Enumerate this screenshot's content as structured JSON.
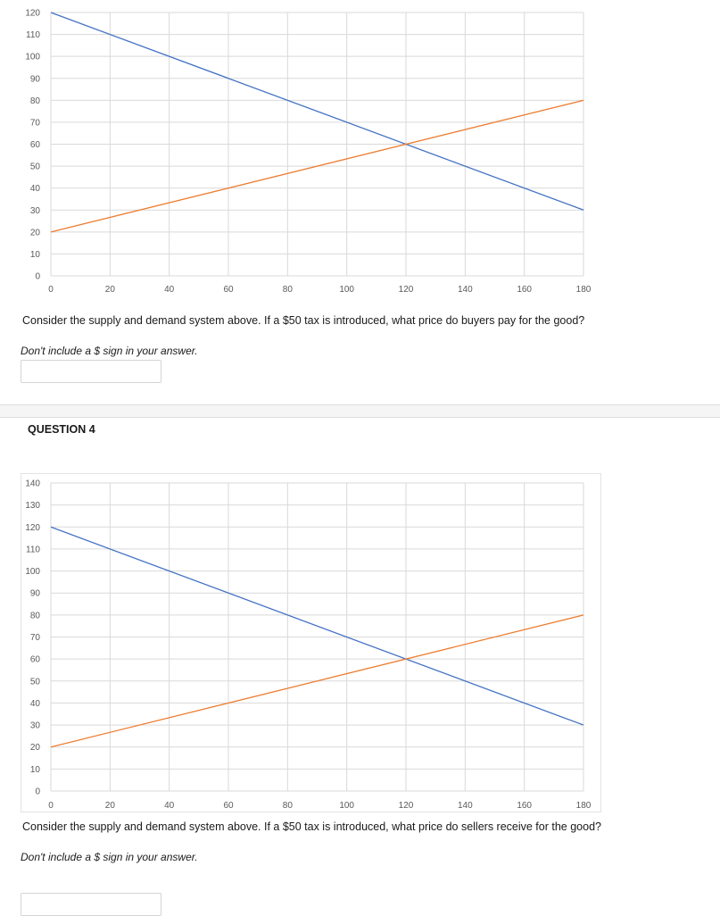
{
  "chart_data": [
    {
      "type": "line",
      "x": [
        0,
        180
      ],
      "series": [
        {
          "color": "#4472C4",
          "values": [
            120,
            30
          ]
        },
        {
          "color": "#ED7D31",
          "values": [
            20,
            80
          ]
        }
      ],
      "xlim": [
        0,
        180
      ],
      "ylim": [
        0,
        120
      ],
      "x_ticks": [
        0,
        20,
        40,
        60,
        80,
        100,
        120,
        140,
        160,
        180
      ],
      "y_ticks": [
        0,
        10,
        20,
        30,
        40,
        50,
        60,
        70,
        80,
        90,
        100,
        110,
        120
      ],
      "grid": true,
      "legend": "none"
    },
    {
      "type": "line",
      "x": [
        0,
        180
      ],
      "series": [
        {
          "color": "#4472C4",
          "values": [
            120,
            30
          ]
        },
        {
          "color": "#ED7D31",
          "values": [
            20,
            80
          ]
        }
      ],
      "xlim": [
        0,
        180
      ],
      "ylim": [
        0,
        140
      ],
      "x_ticks": [
        0,
        20,
        40,
        60,
        80,
        100,
        120,
        140,
        160,
        180
      ],
      "y_ticks": [
        0,
        10,
        20,
        30,
        40,
        50,
        60,
        70,
        80,
        90,
        100,
        110,
        120,
        130,
        140
      ],
      "grid": true,
      "legend": "none"
    }
  ],
  "question3": {
    "prompt": "Consider the supply and demand system above.  If a $50 tax is introduced, what price do buyers pay for the good?",
    "instruction": "Don't include a $ sign in your answer.",
    "answer_value": ""
  },
  "question4": {
    "heading": "QUESTION 4",
    "prompt": "Consider the supply and demand system above.  If a $50 tax is introduced, what price do sellers receive for the good?",
    "instruction": "Don't include a $ sign in your answer.",
    "answer_value": ""
  }
}
